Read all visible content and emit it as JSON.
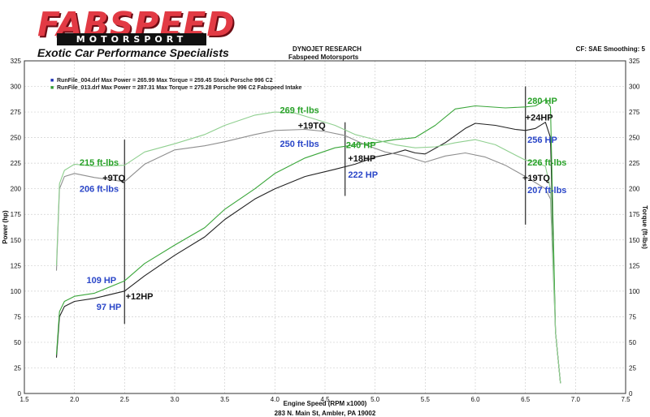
{
  "header": {
    "brand": "FABSPEED",
    "brand_sub": "MOTORSPORT",
    "tagline": "Exotic Car Performance Specialists",
    "title": "DYNOJET RESEARCH",
    "subtitle": "Fabspeed Motorsports",
    "settings": "CF: SAE  Smoothing: 5",
    "footer_address": "283 N. Main St, Ambler, PA 19002"
  },
  "chart_data": {
    "type": "line",
    "xlabel": "Engine Speed (RPM x1000)",
    "ylabel_left": "Power (hp)",
    "ylabel_right": "Torque (ft-lbs)",
    "xlim": [
      1.5,
      7.5
    ],
    "ylim": [
      0,
      325
    ],
    "x_ticks": [
      "1.5",
      "2.0",
      "2.5",
      "3.0",
      "3.5",
      "4.0",
      "4.5",
      "5.0",
      "5.5",
      "6.0",
      "6.5",
      "7.0",
      "7.5"
    ],
    "y_ticks": [
      "0",
      "25",
      "50",
      "75",
      "100",
      "125",
      "150",
      "175",
      "200",
      "225",
      "250",
      "275",
      "300",
      "325"
    ],
    "grid": true,
    "colors": {
      "stock": "#222222",
      "fabspeed": "#3aa63a",
      "label_blue": "#2a46c8",
      "label_green": "#27a127",
      "label_black": "#111111",
      "marker": "#444444"
    },
    "legend": [
      {
        "marker": "■",
        "text": "RunFile_004.drf Max Power = 265.99    Max Torque = 259.45   Stock Porsche 996 C2",
        "color": "#1b2fb5"
      },
      {
        "marker": "■",
        "text": "RunFile_013.drf Max Power = 287.31    Max Torque = 275.28   Porsche 996 C2 Fabspeed Intake",
        "color": "#2f9a2f"
      }
    ],
    "series": [
      {
        "name": "RunFile_004.drf",
        "metric": "Power",
        "x": [
          1.82,
          1.85,
          1.9,
          2.0,
          2.2,
          2.5,
          2.7,
          3.0,
          3.3,
          3.5,
          3.8,
          4.0,
          4.3,
          4.6,
          4.8,
          5.0,
          5.2,
          5.3,
          5.4,
          5.5,
          5.7,
          5.9,
          6.0,
          6.2,
          6.4,
          6.5,
          6.6,
          6.7,
          6.75,
          6.8,
          6.85
        ],
        "y": [
          35,
          75,
          85,
          90,
          93,
          100,
          115,
          135,
          153,
          170,
          190,
          200,
          212,
          219,
          224,
          231,
          235,
          238,
          235,
          234,
          245,
          259,
          264,
          262,
          258,
          257,
          259,
          265,
          250,
          60,
          10
        ]
      },
      {
        "name": "RunFile_013.drf",
        "metric": "Power",
        "x": [
          1.82,
          1.85,
          1.9,
          2.0,
          2.2,
          2.5,
          2.7,
          3.0,
          3.3,
          3.5,
          3.8,
          4.0,
          4.3,
          4.6,
          4.8,
          5.0,
          5.2,
          5.3,
          5.4,
          5.6,
          5.8,
          6.0,
          6.3,
          6.5,
          6.6,
          6.7,
          6.75,
          6.8,
          6.85
        ],
        "y": [
          38,
          80,
          90,
          95,
          98,
          110,
          127,
          145,
          162,
          180,
          200,
          215,
          230,
          240,
          243,
          245,
          248,
          249,
          250,
          262,
          278,
          281,
          279,
          280,
          281,
          287,
          280,
          60,
          10
        ]
      },
      {
        "name": "RunFile_004.drf",
        "metric": "Torque",
        "x": [
          1.82,
          1.85,
          1.9,
          2.0,
          2.2,
          2.5,
          2.7,
          3.0,
          3.3,
          3.5,
          3.8,
          4.0,
          4.3,
          4.5,
          4.7,
          4.9,
          5.1,
          5.3,
          5.5,
          5.7,
          5.9,
          6.1,
          6.3,
          6.5,
          6.6,
          6.7,
          6.75,
          6.8,
          6.85
        ],
        "y": [
          120,
          200,
          212,
          215,
          211,
          207,
          224,
          238,
          242,
          246,
          253,
          257,
          258,
          256,
          252,
          243,
          236,
          232,
          226,
          232,
          235,
          231,
          223,
          212,
          206,
          200,
          190,
          60,
          10
        ]
      },
      {
        "name": "RunFile_013.drf",
        "metric": "Torque",
        "x": [
          1.82,
          1.85,
          1.9,
          2.0,
          2.2,
          2.5,
          2.7,
          3.0,
          3.3,
          3.5,
          3.8,
          4.0,
          4.2,
          4.4,
          4.6,
          4.8,
          5.0,
          5.2,
          5.4,
          5.6,
          5.8,
          6.0,
          6.2,
          6.4,
          6.5,
          6.6,
          6.7,
          6.75,
          6.8,
          6.85
        ],
        "y": [
          125,
          205,
          218,
          224,
          222,
          223,
          236,
          244,
          253,
          262,
          272,
          275,
          274,
          268,
          262,
          253,
          248,
          243,
          240,
          241,
          245,
          248,
          243,
          233,
          228,
          226,
          222,
          200,
          60,
          10
        ]
      }
    ],
    "markers": [
      {
        "x": 2.5,
        "y0": 68,
        "y1": 248
      },
      {
        "x": 4.7,
        "y0": 193,
        "y1": 265
      },
      {
        "x": 6.5,
        "y0": 165,
        "y1": 300
      }
    ],
    "annotations": [
      {
        "text": "215 ft-lbs",
        "x": 2.05,
        "y": 226,
        "color": "label_green",
        "anchor": "start"
      },
      {
        "text": "+9TQ",
        "x": 2.28,
        "y": 211,
        "color": "label_black",
        "anchor": "start"
      },
      {
        "text": "206 ft-lbs",
        "x": 2.05,
        "y": 200,
        "color": "label_blue",
        "anchor": "start"
      },
      {
        "text": "109 HP",
        "x": 2.12,
        "y": 111,
        "color": "label_blue",
        "anchor": "start"
      },
      {
        "text": "+12HP",
        "x": 2.51,
        "y": 95,
        "color": "label_black",
        "anchor": "start"
      },
      {
        "text": "97 HP",
        "x": 2.22,
        "y": 85,
        "color": "label_blue",
        "anchor": "start"
      },
      {
        "text": "269 ft-lbs",
        "x": 4.05,
        "y": 277,
        "color": "label_green",
        "anchor": "start"
      },
      {
        "text": "+19TQ",
        "x": 4.23,
        "y": 262,
        "color": "label_black",
        "anchor": "start"
      },
      {
        "text": "250 ft-lbs",
        "x": 4.05,
        "y": 244,
        "color": "label_blue",
        "anchor": "start"
      },
      {
        "text": "240 HP",
        "x": 4.71,
        "y": 243,
        "color": "label_green",
        "anchor": "start"
      },
      {
        "text": "+18HP",
        "x": 4.73,
        "y": 230,
        "color": "label_black",
        "anchor": "start"
      },
      {
        "text": "222 HP",
        "x": 4.73,
        "y": 214,
        "color": "label_blue",
        "anchor": "start"
      },
      {
        "text": "280 HP",
        "x": 6.52,
        "y": 286,
        "color": "label_green",
        "anchor": "start"
      },
      {
        "text": "+24HP",
        "x": 6.5,
        "y": 270,
        "color": "label_black",
        "anchor": "start"
      },
      {
        "text": "256 HP",
        "x": 6.52,
        "y": 248,
        "color": "label_blue",
        "anchor": "start"
      },
      {
        "text": "226 ft-lbs",
        "x": 6.52,
        "y": 226,
        "color": "label_green",
        "anchor": "start"
      },
      {
        "text": "+19TQ",
        "x": 6.47,
        "y": 211,
        "color": "label_black",
        "anchor": "start"
      },
      {
        "text": "207 ft-lbs",
        "x": 6.52,
        "y": 199,
        "color": "label_blue",
        "anchor": "start"
      }
    ]
  }
}
